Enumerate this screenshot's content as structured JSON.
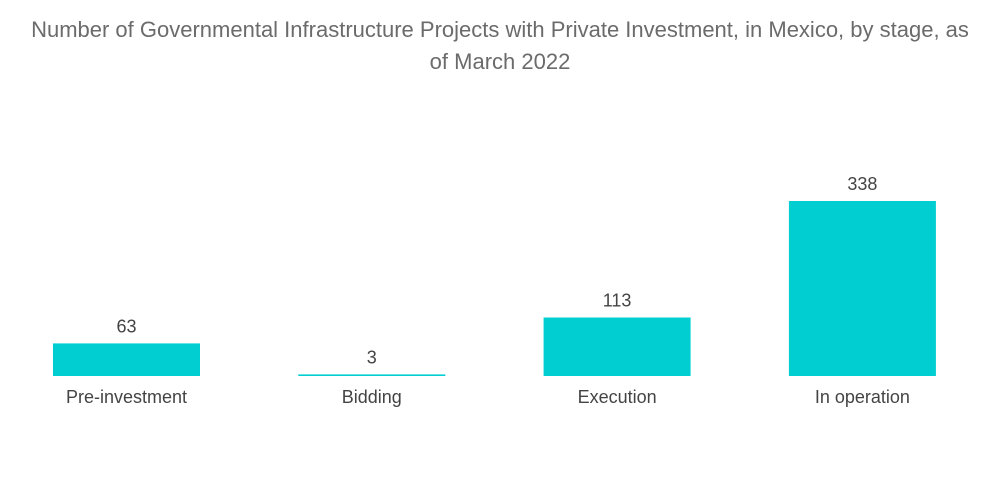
{
  "chart_data": {
    "type": "bar",
    "title": "Number of Governmental Infrastructure Projects with Private Investment, in Mexico, by stage, as of March 2022",
    "categories": [
      "Pre-investment",
      "Bidding",
      "Execution",
      "In operation"
    ],
    "values": [
      63,
      3,
      113,
      338
    ],
    "data_labels": [
      "63",
      "3",
      "113",
      "338"
    ],
    "xlabel": "",
    "ylabel": "",
    "ylim": [
      0,
      338
    ],
    "grid": false,
    "legend": "none",
    "colors": {
      "bar": "#00CED1",
      "text": "#444444",
      "title": "#6b6b6b"
    }
  }
}
